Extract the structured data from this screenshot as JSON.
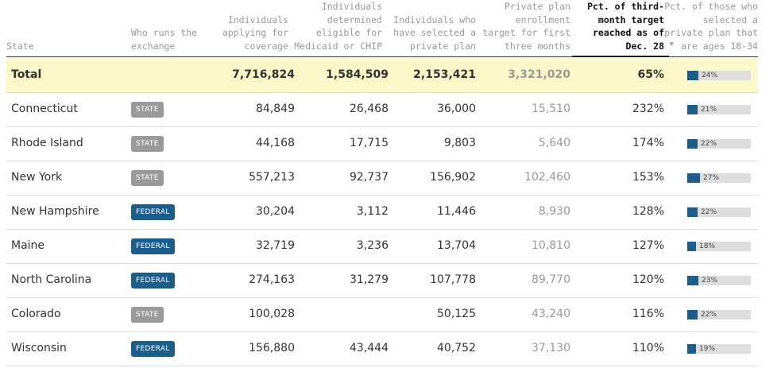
{
  "headers": {
    "state": "State",
    "exchange": [
      "Who runs the",
      "exchange"
    ],
    "applying": [
      "Individuals",
      "applying for",
      "coverage"
    ],
    "medicaid": [
      "Individuals",
      "determined",
      "eligible for",
      "Medicaid or CHIP"
    ],
    "selected": [
      "Individuals who",
      "have selected a",
      "private plan"
    ],
    "target": [
      "Private plan",
      "enrollment",
      "target for first",
      "three months"
    ],
    "pct_target": [
      "Pct. of third-",
      "month target",
      "reached as of",
      "Dec. 28"
    ],
    "pct_young": [
      "Pct. of those who",
      "selected a",
      "private plan that",
      "are ages 18-34"
    ],
    "sort_indicator": "▼"
  },
  "total": {
    "label": "Total",
    "applying": "7,716,824",
    "medicaid": "1,584,509",
    "selected": "2,153,421",
    "target": "3,321,020",
    "pct_target": "65%",
    "pct_young_label": "24%",
    "pct_young": 24
  },
  "rows": [
    {
      "state": "Connecticut",
      "exchange": "STATE",
      "applying": "84,849",
      "medicaid": "26,468",
      "selected": "36,000",
      "target": "15,510",
      "pct_target": "232%",
      "pct_young_label": "21%",
      "pct_young": 21
    },
    {
      "state": "Rhode Island",
      "exchange": "STATE",
      "applying": "44,168",
      "medicaid": "17,715",
      "selected": "9,803",
      "target": "5,640",
      "pct_target": "174%",
      "pct_young_label": "22%",
      "pct_young": 22
    },
    {
      "state": "New York",
      "exchange": "STATE",
      "applying": "557,213",
      "medicaid": "92,737",
      "selected": "156,902",
      "target": "102,460",
      "pct_target": "153%",
      "pct_young_label": "27%",
      "pct_young": 27
    },
    {
      "state": "New Hampshire",
      "exchange": "FEDERAL",
      "applying": "30,204",
      "medicaid": "3,112",
      "selected": "11,446",
      "target": "8,930",
      "pct_target": "128%",
      "pct_young_label": "22%",
      "pct_young": 22
    },
    {
      "state": "Maine",
      "exchange": "FEDERAL",
      "applying": "32,719",
      "medicaid": "3,236",
      "selected": "13,704",
      "target": "10,810",
      "pct_target": "127%",
      "pct_young_label": "18%",
      "pct_young": 18
    },
    {
      "state": "North Carolina",
      "exchange": "FEDERAL",
      "applying": "274,163",
      "medicaid": "31,279",
      "selected": "107,778",
      "target": "89,770",
      "pct_target": "120%",
      "pct_young_label": "23%",
      "pct_young": 23
    },
    {
      "state": "Colorado",
      "exchange": "STATE",
      "applying": "100,028",
      "medicaid": "",
      "selected": "50,125",
      "target": "43,240",
      "pct_target": "116%",
      "pct_young_label": "22%",
      "pct_young": 22
    },
    {
      "state": "Wisconsin",
      "exchange": "FEDERAL",
      "applying": "156,880",
      "medicaid": "43,444",
      "selected": "40,752",
      "target": "37,130",
      "pct_target": "110%",
      "pct_young_label": "19%",
      "pct_young": 19
    }
  ],
  "colors": {
    "federal_badge": "#1a5e8e",
    "state_badge": "#9a9a9a",
    "bar_fill": "#1a5e8e",
    "bar_track": "#dddddd",
    "total_row_bg": "#fbf7c8"
  }
}
